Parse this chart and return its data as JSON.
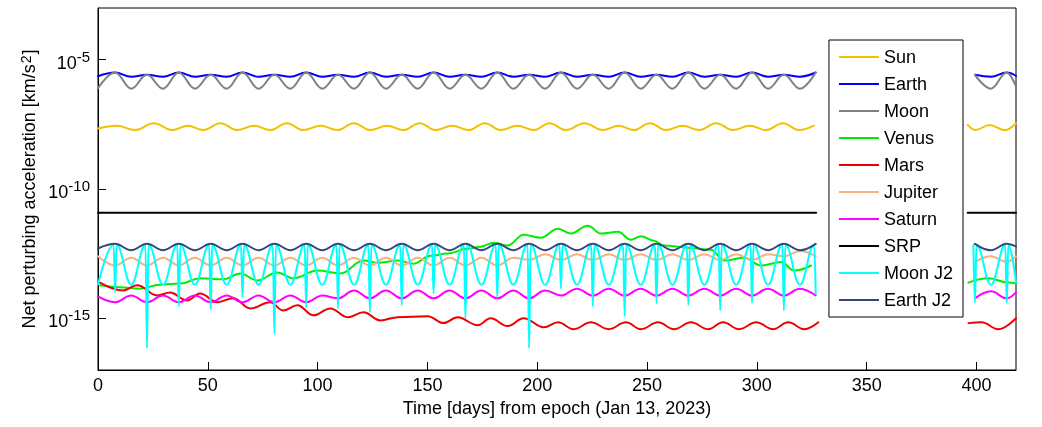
{
  "chart_data": {
    "type": "line",
    "xlabel": "Time [days] from epoch (Jan 13, 2023)",
    "ylabel": "Net perturbing acceleration [km/s$^{2}$]",
    "log": "y",
    "grid": false,
    "legend": "top right",
    "marker": "none",
    "line_style": "solid",
    "xlim": [
      0,
      418
    ],
    "xticks": [
      0,
      50,
      100,
      150,
      200,
      250,
      300,
      350,
      400
    ],
    "ylim": [
      1e-17,
      0.001
    ],
    "yticks": [
      {
        "value": 1e-05,
        "label": "10$^{-5}$"
      },
      {
        "value": 1e-10,
        "label": "10$^{-10}$"
      },
      {
        "value": 1e-15,
        "label": "10$^{-15}$"
      }
    ],
    "x": [
      0,
      7.8,
      15.1,
      22.3,
      29.6,
      36.8,
      44.1,
      51.3,
      58.6,
      65.8,
      73.1,
      80.3,
      87.6,
      94.8,
      102.1,
      109.3,
      116.6,
      123.8,
      131.1,
      138.3,
      145.6,
      152.8,
      160.1,
      167.3,
      174.6,
      181.8,
      189.1,
      196.3,
      203.6,
      210.8,
      218.1,
      225.3,
      232.6,
      239.8,
      247.1,
      254.3,
      261.6,
      268.8,
      276.1,
      283.3,
      290.6,
      297.8,
      305.1,
      312.3,
      319.6,
      326.8,
      360,
      399.3,
      406.6,
      413.8,
      418
    ],
    "series": [
      {
        "name": "Sun",
        "color": "#f2c200",
        "x": [
          0,
          8.5,
          16.9,
          25.4,
          33.8,
          40.9,
          47.9,
          55.7,
          63.4,
          71,
          78.5,
          86,
          93.5,
          101.3,
          109,
          116.5,
          124,
          131.6,
          139.1,
          146.4,
          153.7,
          161.3,
          168.8,
          176.1,
          183.4,
          190.9,
          198.4,
          205.7,
          213,
          221.5,
          229.9,
          237,
          244,
          251.3,
          258.6,
          266.2,
          273.7,
          281.5,
          289.2,
          296.7,
          304.2,
          311.8,
          319.3,
          326,
          360,
          396,
          399.5,
          406,
          413,
          418
        ],
        "values": [
          2.2e-08,
          2.8e-08,
          1.9e-08,
          3.5e-08,
          1.9e-08,
          2.8e-08,
          1.9e-08,
          3.5e-08,
          1.9e-08,
          2.8e-08,
          1.9e-08,
          3.5e-08,
          1.9e-08,
          2.8e-08,
          1.9e-08,
          3.5e-08,
          1.9e-08,
          2.8e-08,
          1.9e-08,
          3.5e-08,
          1.9e-08,
          2.8e-08,
          1.9e-08,
          3.5e-08,
          1.9e-08,
          2.8e-08,
          1.9e-08,
          3.5e-08,
          1.9e-08,
          3.5e-08,
          1.9e-08,
          2.8e-08,
          1.9e-08,
          3.5e-08,
          1.9e-08,
          2.8e-08,
          1.9e-08,
          3.5e-08,
          1.9e-08,
          2.8e-08,
          1.9e-08,
          3.5e-08,
          1.9e-08,
          2.8e-08,
          null,
          3e-08,
          1.9e-08,
          3e-08,
          1.9e-08,
          3.5e-08
        ]
      },
      {
        "name": "Earth",
        "color": "#0000ff",
        "values": [
          2.3e-06,
          3.2e-06,
          2.2e-06,
          2.6e-06,
          2.2e-06,
          3.2e-06,
          2.2e-06,
          2.6e-06,
          2.2e-06,
          3.2e-06,
          2.2e-06,
          2.6e-06,
          2.2e-06,
          3.2e-06,
          2.2e-06,
          2.6e-06,
          2.2e-06,
          3.2e-06,
          2.2e-06,
          2.6e-06,
          2.2e-06,
          3.2e-06,
          2.2e-06,
          2.6e-06,
          2.2e-06,
          3.2e-06,
          2.2e-06,
          2.6e-06,
          2.2e-06,
          3.2e-06,
          2.2e-06,
          2.6e-06,
          2.2e-06,
          3.2e-06,
          2.2e-06,
          2.6e-06,
          2.2e-06,
          3.2e-06,
          2.2e-06,
          2.6e-06,
          2.2e-06,
          3.2e-06,
          2.2e-06,
          2.6e-06,
          2.2e-06,
          3.2e-06,
          null,
          2.6e-06,
          2.2e-06,
          3.2e-06,
          2.4e-06
        ]
      },
      {
        "name": "Moon",
        "color": "#808080",
        "values": [
          8e-07,
          3.2e-06,
          7.6e-07,
          2.6e-06,
          7.6e-07,
          3.2e-06,
          7.6e-07,
          2.6e-06,
          7.6e-07,
          3.2e-06,
          7.6e-07,
          2.6e-06,
          7.6e-07,
          3.2e-06,
          7.6e-07,
          2.6e-06,
          7.6e-07,
          3.2e-06,
          7.6e-07,
          2.6e-06,
          7.6e-07,
          3.2e-06,
          7.6e-07,
          2.6e-06,
          7.6e-07,
          3.2e-06,
          7.6e-07,
          2.6e-06,
          7.6e-07,
          3.2e-06,
          7.6e-07,
          2.6e-06,
          7.6e-07,
          3.2e-06,
          7.6e-07,
          2.6e-06,
          7.6e-07,
          3.2e-06,
          7.6e-07,
          2.6e-06,
          7.6e-07,
          3.2e-06,
          7.6e-07,
          2.6e-06,
          7.6e-07,
          3.2e-06,
          null,
          2.6e-06,
          7.6e-07,
          3.2e-06,
          9e-07
        ]
      },
      {
        "name": "Venus",
        "color": "#00ee00",
        "x": [
          0.9,
          10,
          19.2,
          28.3,
          37.4,
          46.5,
          57,
          64.8,
          72.5,
          81.6,
          88.9,
          99.9,
          110.4,
          120.9,
          127.3,
          136.4,
          143.7,
          151.4,
          159.2,
          168.3,
          174.2,
          180.2,
          186.5,
          193.8,
          201.6,
          209.4,
          215.3,
          223,
          229,
          236.7,
          242.6,
          247.2,
          253.1,
          257.7,
          268.6,
          279.1,
          285.1,
          294.2,
          301.9,
          311,
          317,
          324.7,
          360,
          396.3,
          405.5,
          414.6,
          418
        ],
        "values": [
          1.9e-14,
          1.6e-14,
          1.4e-14,
          2e-14,
          2.2e-14,
          3.5e-14,
          3.2e-14,
          5.4e-14,
          2.9e-14,
          5.9e-14,
          3.5e-14,
          7e-14,
          5.4e-14,
          1.7e-13,
          1.4e-13,
          1.7e-13,
          1.3e-13,
          2.6e-13,
          3.2e-13,
          4.9e-13,
          5.9e-13,
          8.3e-13,
          6.5e-13,
          1.7e-12,
          1.3e-12,
          2.9e-12,
          1.9e-12,
          3.8e-12,
          1.9e-12,
          2.2e-12,
          1.1e-12,
          1.5e-12,
          1e-12,
          6.5e-13,
          5.4e-13,
          4.5e-13,
          1.7e-13,
          2.2e-13,
          1.1e-13,
          1.5e-13,
          7e-14,
          1.1e-13,
          null,
          2.4e-14,
          3.5e-14,
          2.4e-14,
          2.2e-14
        ]
      },
      {
        "name": "Mars",
        "color": "#ee0000",
        "x": [
          0.9,
          11.4,
          17.8,
          26.9,
          32.8,
          40.6,
          46.5,
          54.3,
          61.6,
          69.3,
          78.4,
          84.4,
          90.8,
          98.1,
          105.8,
          113.6,
          120.9,
          128.6,
          136.4,
          150.1,
          157.4,
          163.7,
          172.9,
          178.8,
          186.5,
          193.8,
          203,
          209.4,
          216.6,
          224.4,
          232.6,
          240.4,
          247.2,
          255,
          262.3,
          270,
          277.8,
          284.6,
          291.9,
          299.7,
          307.4,
          314.3,
          321.6,
          328,
          360,
          396.4,
          402.3,
          410,
          418
        ],
        "values": [
          2.4e-14,
          1.2e-14,
          1.9e-14,
          7.6e-15,
          1e-14,
          4.9e-15,
          9e-15,
          4.2e-15,
          6e-15,
          2.4e-15,
          4.2e-15,
          2e-15,
          3.2e-15,
          1.3e-15,
          2.4e-15,
          1.1e-15,
          1.7e-15,
          8.3e-16,
          1.1e-15,
          1.2e-15,
          6.5e-16,
          1.1e-15,
          5.4e-16,
          1e-15,
          5e-16,
          1e-15,
          4.5e-16,
          7e-16,
          3.8e-16,
          7e-16,
          3.8e-16,
          7e-16,
          3.8e-16,
          7e-16,
          3.8e-16,
          7e-16,
          3.8e-16,
          7e-16,
          3.8e-16,
          7e-16,
          3.8e-16,
          7e-16,
          3.8e-16,
          7e-16,
          null,
          6.5e-16,
          7e-16,
          3.8e-16,
          1e-15
        ]
      },
      {
        "name": "Jupiter",
        "color": "#fdb07a",
        "values": [
          2.5e-13,
          1.1e-13,
          2.2e-13,
          1.1e-13,
          2.2e-13,
          1.1e-13,
          2.2e-13,
          1.1e-13,
          2.2e-13,
          1.1e-13,
          2.2e-13,
          1.1e-13,
          2.2e-13,
          1.1e-13,
          2.2e-13,
          1.1e-13,
          2.2e-13,
          1.1e-13,
          2.2e-13,
          1.1e-13,
          2.2e-13,
          1.1e-13,
          2.2e-13,
          1.1e-13,
          2.2e-13,
          1.1e-13,
          2.2e-13,
          1.8e-13,
          3e-13,
          1.8e-13,
          3e-13,
          1.8e-13,
          3e-13,
          1.8e-13,
          3e-13,
          1.8e-13,
          3e-13,
          1.8e-13,
          3e-13,
          1.8e-13,
          3e-13,
          1.8e-13,
          3e-13,
          2.5e-13,
          4e-13,
          2.5e-13,
          null,
          1.5e-13,
          2.5e-13,
          1.5e-13,
          2.5e-13
        ]
      },
      {
        "name": "Saturn",
        "color": "#ff00ff",
        "values": [
          7e-15,
          4.2e-15,
          7.6e-15,
          4.2e-15,
          7.6e-15,
          4.2e-15,
          7.6e-15,
          4.2e-15,
          7.6e-15,
          4.2e-15,
          7.6e-15,
          4.2e-15,
          7.6e-15,
          4.2e-15,
          7.6e-15,
          5.9e-15,
          1.2e-14,
          5.9e-15,
          1.2e-14,
          5.9e-15,
          1.2e-14,
          5.9e-15,
          1.2e-14,
          5.9e-15,
          1.2e-14,
          5.9e-15,
          1.2e-14,
          5.9e-15,
          1.2e-14,
          7.6e-15,
          1.4e-14,
          7.6e-15,
          1.4e-14,
          7.6e-15,
          1.4e-14,
          7.6e-15,
          1.4e-14,
          7.6e-15,
          1.4e-14,
          7.6e-15,
          1.4e-14,
          7.6e-15,
          1.4e-14,
          7.6e-15,
          1.4e-14,
          7.6e-15,
          null,
          5.9e-15,
          1.1e-14,
          5.9e-15,
          1e-14
        ]
      },
      {
        "name": "SRP",
        "color": "#000000",
        "x": [
          0,
          327,
          360,
          396,
          418
        ],
        "values": [
          1.2e-11,
          1.2e-11,
          null,
          1.2e-11,
          1.2e-11
        ]
      },
      {
        "name": "Moon J2",
        "color": "#00ffff",
        "x": [
          0,
          7.1,
          7.8,
          8.5,
          15.1,
          21.6,
          22.3,
          23,
          29.6,
          36.1,
          36.8,
          37.5,
          44.1,
          50.6,
          51.3,
          52,
          58.6,
          65.1,
          65.8,
          66.5,
          73.1,
          79.6,
          80.3,
          81,
          87.6,
          94.1,
          94.8,
          95.5,
          102.1,
          108.6,
          109.3,
          110,
          116.6,
          123.1,
          123.8,
          124.5,
          131.1,
          137.6,
          138.3,
          139,
          145.6,
          152.1,
          152.8,
          153.5,
          160.1,
          166.6,
          167.3,
          168,
          174.6,
          181.1,
          181.8,
          182.5,
          189.1,
          195.6,
          196.3,
          197,
          203.6,
          210.1,
          210.8,
          211.5,
          218.1,
          224.6,
          225.3,
          226,
          232.6,
          239.1,
          239.8,
          240.5,
          247.1,
          253.6,
          254.3,
          255,
          261.6,
          268.1,
          268.8,
          269.5,
          276.1,
          282.6,
          283.3,
          284,
          290.6,
          297.1,
          297.8,
          298.5,
          305.1,
          311.6,
          312.3,
          313,
          319.6,
          326.1,
          326.8,
          360,
          398.6,
          399.3,
          400,
          406.6,
          413.1,
          413.8,
          414.5,
          418
        ],
        "values": [
          2e-14,
          7e-13,
          1e-14,
          7e-13,
          2e-14,
          7e-13,
          7e-17,
          7e-13,
          2e-14,
          7e-13,
          2.9e-15,
          7e-13,
          2e-14,
          7e-13,
          2.2e-15,
          7e-13,
          2e-14,
          7e-13,
          6.5e-15,
          7e-13,
          2e-14,
          7e-13,
          2.5e-16,
          7e-13,
          2e-14,
          7e-13,
          2.6e-15,
          7e-13,
          2e-14,
          7e-13,
          2.4e-15,
          7e-13,
          2e-14,
          7e-13,
          1.7e-15,
          7e-13,
          2e-14,
          7e-13,
          3.2e-15,
          7e-13,
          2e-14,
          7e-13,
          9e-15,
          7e-13,
          2e-14,
          7e-13,
          1e-15,
          7e-13,
          2e-14,
          7e-13,
          6.5e-15,
          7e-13,
          2e-14,
          7e-13,
          7e-17,
          7e-13,
          2e-14,
          7e-13,
          1.4e-14,
          7e-13,
          2e-14,
          7e-13,
          2.9e-15,
          7e-13,
          2e-14,
          7e-13,
          1.2e-15,
          7e-13,
          2e-14,
          7e-13,
          3.8e-15,
          7e-13,
          2e-14,
          7e-13,
          3.2e-15,
          7e-13,
          2e-14,
          7e-13,
          2e-15,
          7e-13,
          2e-14,
          7e-13,
          3.8e-15,
          7e-13,
          2e-14,
          7e-13,
          2e-15,
          7e-13,
          2e-14,
          7e-13,
          9e-15,
          null,
          7e-13,
          4e-15,
          7e-13,
          2e-14,
          7e-13,
          4e-15,
          7e-13,
          2.4e-14
        ]
      },
      {
        "name": "Earth J2",
        "color": "#34497a",
        "values": [
          5e-13,
          7.6e-13,
          4.3e-13,
          7.6e-13,
          4.3e-13,
          7.6e-13,
          4.3e-13,
          7.6e-13,
          4.3e-13,
          7.6e-13,
          4.3e-13,
          7.6e-13,
          4.3e-13,
          7.6e-13,
          4.3e-13,
          7.6e-13,
          4.3e-13,
          7.6e-13,
          4.3e-13,
          7.6e-13,
          4.3e-13,
          7.6e-13,
          4.3e-13,
          7.6e-13,
          4.3e-13,
          7.6e-13,
          4.3e-13,
          7.6e-13,
          4.3e-13,
          7.6e-13,
          4.3e-13,
          7.6e-13,
          4.3e-13,
          7.6e-13,
          4.3e-13,
          7.6e-13,
          4.3e-13,
          7.6e-13,
          4.3e-13,
          7.6e-13,
          4.3e-13,
          7.6e-13,
          4.3e-13,
          7.6e-13,
          4.3e-13,
          7.6e-13,
          null,
          7.6e-13,
          4.3e-13,
          7.6e-13,
          6e-13
        ]
      }
    ]
  }
}
